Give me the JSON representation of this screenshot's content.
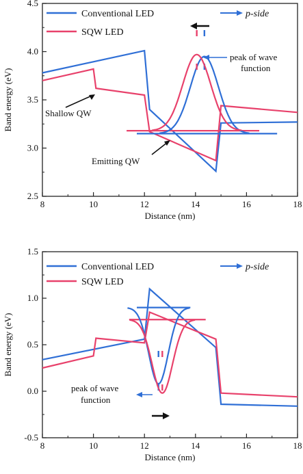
{
  "colors": {
    "conventional": "#2f6fd6",
    "sqw": "#e8416b",
    "axis": "#222222",
    "annotation_arrow": "#111111"
  },
  "chart_data": [
    {
      "type": "line",
      "xlabel": "Distance (nm)",
      "ylabel": "Band energy (eV)",
      "xlim": [
        8,
        18
      ],
      "ylim": [
        2.5,
        4.5
      ],
      "xticks": [
        "8",
        "10",
        "12",
        "14",
        "16",
        "18"
      ],
      "yticks": [
        "2.5",
        "3.0",
        "3.5",
        "4.0",
        "4.5"
      ],
      "legend": {
        "position": "top-left",
        "entries": [
          "Conventional LED",
          "SQW LED"
        ]
      },
      "p_side_label": "p-side",
      "series": [
        {
          "name": "Conventional LED",
          "color": "#2f6fd6",
          "x": [
            8,
            12,
            12.2,
            14.8,
            15,
            18
          ],
          "y": [
            3.78,
            4.01,
            3.4,
            2.76,
            3.26,
            3.27
          ]
        },
        {
          "name": "SQW LED",
          "color": "#e8416b",
          "x": [
            8,
            10,
            10.1,
            12,
            12.2,
            14.8,
            15,
            18
          ],
          "y": [
            3.7,
            3.82,
            3.62,
            3.55,
            3.17,
            2.87,
            3.44,
            3.37
          ]
        }
      ],
      "energy_levels": [
        {
          "series": "Conventional LED",
          "x": [
            11.7,
            17.2
          ],
          "y": 3.15
        },
        {
          "series": "SQW LED",
          "x": [
            11.3,
            16.5
          ],
          "y": 3.18
        }
      ],
      "wave_functions": [
        {
          "series": "Conventional LED",
          "center": 14.35,
          "sigma": 0.55,
          "baseline": 3.15,
          "peak": 3.95
        },
        {
          "series": "SQW LED",
          "center": 14.05,
          "sigma": 0.55,
          "baseline": 3.18,
          "peak": 3.97
        }
      ],
      "annotations": {
        "shallow_qw": "Shallow QW",
        "emitting_qw": "Emitting QW",
        "peak_line1": "peak of wave",
        "peak_line2": "function"
      }
    },
    {
      "type": "line",
      "xlabel": "Distance (nm)",
      "ylabel": "Band energy (eV)",
      "xlim": [
        8,
        18
      ],
      "ylim": [
        -0.5,
        1.5
      ],
      "xticks": [
        "8",
        "10",
        "12",
        "14",
        "16",
        "18"
      ],
      "yticks": [
        "-0.5",
        "0.0",
        "0.5",
        "1.0",
        "1.5"
      ],
      "legend": {
        "position": "top-left",
        "entries": [
          "Conventional LED",
          "SQW LED"
        ]
      },
      "p_side_label": "p-side",
      "series": [
        {
          "name": "Conventional LED",
          "color": "#2f6fd6",
          "x": [
            8,
            12,
            12.2,
            14.8,
            15,
            18
          ],
          "y": [
            0.34,
            0.56,
            1.1,
            0.47,
            -0.14,
            -0.16
          ]
        },
        {
          "name": "SQW LED",
          "color": "#e8416b",
          "x": [
            8,
            10,
            10.1,
            12,
            12.2,
            14.8,
            15,
            18
          ],
          "y": [
            0.25,
            0.38,
            0.57,
            0.52,
            0.85,
            0.56,
            -0.02,
            -0.06
          ]
        }
      ],
      "energy_levels": [
        {
          "series": "Conventional LED",
          "x": [
            11.7,
            13.8
          ],
          "y": 0.9
        },
        {
          "series": "SQW LED",
          "x": [
            11.4,
            14.4
          ],
          "y": 0.77
        }
      ],
      "wave_functions": [
        {
          "series": "Conventional LED",
          "center": 12.55,
          "sigma": 0.38,
          "baseline": 0.9,
          "peak": 0.08
        },
        {
          "series": "SQW LED",
          "center": 12.7,
          "sigma": 0.4,
          "baseline": 0.77,
          "peak": -0.02
        }
      ],
      "annotations": {
        "peak_line1": "peak of wave",
        "peak_line2": "function"
      }
    }
  ]
}
